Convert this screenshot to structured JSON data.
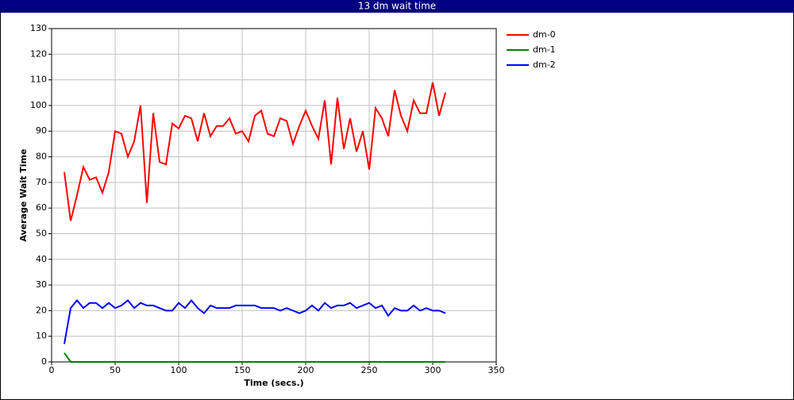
{
  "chart_data": {
    "type": "line",
    "title": "13 dm wait time",
    "x_label": "Time (secs.)",
    "y_label": "Average Wait Time",
    "x": [
      10,
      15,
      20,
      25,
      30,
      35,
      40,
      45,
      50,
      55,
      60,
      65,
      70,
      75,
      80,
      85,
      90,
      95,
      100,
      105,
      110,
      115,
      120,
      125,
      130,
      135,
      140,
      145,
      150,
      155,
      160,
      165,
      170,
      175,
      180,
      185,
      190,
      195,
      200,
      205,
      210,
      215,
      220,
      225,
      230,
      235,
      240,
      245,
      250,
      255,
      260,
      265,
      270,
      275,
      280,
      285,
      290,
      295,
      300,
      305,
      310
    ],
    "series": [
      {
        "name": "dm-0",
        "color": "#ff0000",
        "values": [
          74,
          55,
          65,
          76,
          71,
          72,
          66,
          74,
          90,
          89,
          80,
          86,
          100,
          62,
          97,
          78,
          77,
          93,
          91,
          96,
          95,
          86,
          97,
          88,
          92,
          92,
          95,
          89,
          90,
          86,
          96,
          98,
          89,
          88,
          95,
          94,
          85,
          92,
          98,
          92,
          87,
          102,
          77,
          103,
          83,
          95,
          82,
          90,
          75,
          99,
          95,
          88,
          106,
          96,
          90,
          102,
          97,
          97,
          109,
          96,
          105
        ]
      },
      {
        "name": "dm-1",
        "color": "#008000",
        "values": [
          3.5,
          0,
          0,
          0,
          0,
          0,
          0,
          0,
          0,
          0,
          0,
          0,
          0,
          0,
          0,
          0,
          0,
          0,
          0,
          0,
          0,
          0,
          0,
          0,
          0,
          0,
          0,
          0,
          0,
          0,
          0,
          0,
          0,
          0,
          0,
          0,
          0,
          0,
          0,
          0,
          0,
          0,
          0,
          0,
          0,
          0,
          0,
          0,
          0,
          0,
          0,
          0,
          0,
          0,
          0,
          0,
          0,
          0,
          0,
          0,
          0
        ]
      },
      {
        "name": "dm-2",
        "color": "#0000ff",
        "values": [
          7,
          21,
          24,
          21,
          23,
          23,
          21,
          23,
          21,
          22,
          24,
          21,
          23,
          22,
          22,
          21,
          20,
          20,
          23,
          21,
          24,
          21,
          19,
          22,
          21,
          21,
          21,
          22,
          22,
          22,
          22,
          21,
          21,
          21,
          20,
          21,
          20,
          19,
          20,
          22,
          20,
          23,
          21,
          22,
          22,
          23,
          21,
          22,
          23,
          21,
          22,
          18,
          21,
          20,
          20,
          22,
          20,
          21,
          20,
          20,
          19
        ]
      }
    ],
    "xlim": [
      0,
      350
    ],
    "xticks": [
      0,
      50,
      100,
      150,
      200,
      250,
      300,
      350
    ],
    "ylim": [
      0,
      130
    ],
    "yticks": [
      0,
      10,
      20,
      30,
      40,
      50,
      60,
      70,
      80,
      90,
      100,
      110,
      120,
      130
    ],
    "grid": true,
    "legend": "right"
  }
}
